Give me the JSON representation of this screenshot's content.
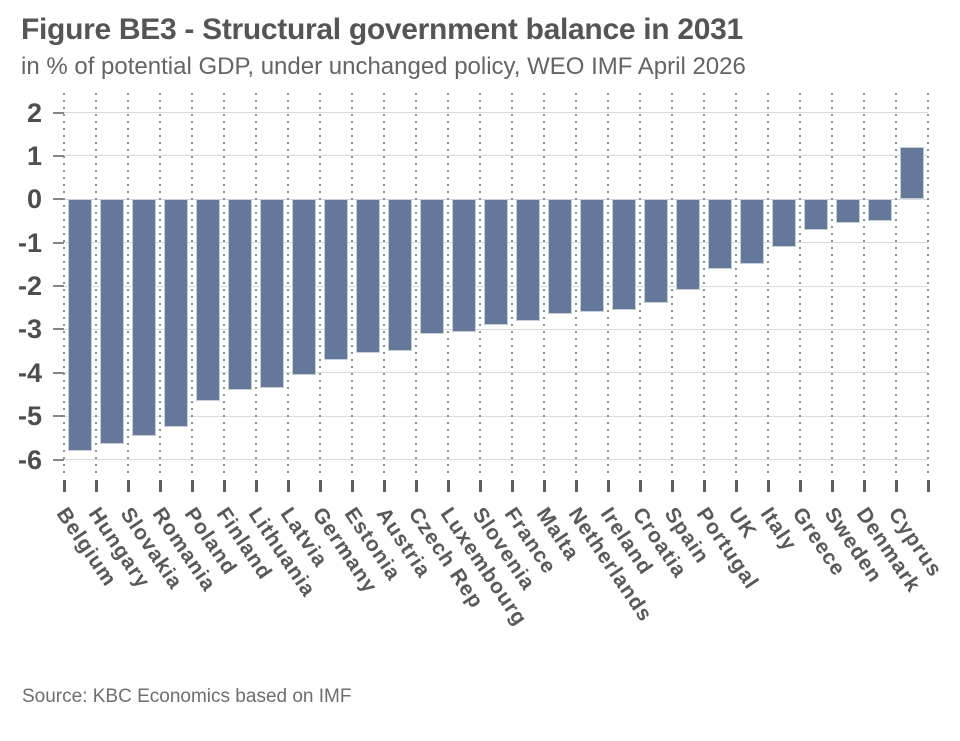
{
  "figure": {
    "title": "Figure BE3 - Structural government balance in 2031",
    "subtitle": "in % of potential GDP, under unchanged policy, WEO IMF April 2026",
    "source": "Source: KBC Economics based on IMF"
  },
  "colors": {
    "bar": "#64789b",
    "bar_border": "#c6cedb",
    "gridline": "#dadada",
    "dotted_separator": "#8f8f8f",
    "axis_tick": "#5f5f61",
    "title_text": "#555557",
    "subtitle_text": "#646464",
    "y_label_text": "#4e4e50",
    "x_label_text": "#58595b",
    "source_text": "#6e6e6e"
  },
  "chart_data": {
    "type": "bar",
    "title": "Figure BE3 - Structural government balance in 2031",
    "subtitle": "in % of potential GDP, under unchanged policy, WEO IMF April 2026",
    "source": "Source: KBC Economics based on IMF",
    "categories": [
      "Belgium",
      "Hungary",
      "Slovakia",
      "Romania",
      "Poland",
      "Finland",
      "Lithuania",
      "Latvia",
      "Germany",
      "Estonia",
      "Austria",
      "Czech Rep",
      "Luxembourg",
      "Slovenia",
      "France",
      "Malta",
      "Netherlands",
      "Ireland",
      "Croatia",
      "Spain",
      "Portugal",
      "UK",
      "Italy",
      "Greece",
      "Sweden",
      "Denmark",
      "Cyprus"
    ],
    "values": [
      -5.8,
      -5.65,
      -5.45,
      -5.25,
      -4.65,
      -4.4,
      -4.35,
      -4.05,
      -3.7,
      -3.55,
      -3.5,
      -3.1,
      -3.05,
      -2.9,
      -2.8,
      -2.65,
      -2.6,
      -2.55,
      -2.4,
      -2.1,
      -1.6,
      -1.5,
      -1.1,
      -0.7,
      -0.55,
      -0.5,
      1.2
    ],
    "xlabel": "",
    "ylabel": "",
    "y_ticks": [
      2,
      1,
      0,
      -1,
      -2,
      -3,
      -4,
      -5,
      -6
    ],
    "ylim": [
      -6.4,
      2.45
    ],
    "grid": "horizontal solid lines + vertical dotted category separators",
    "legend": "none",
    "bar_color": "#64789b",
    "x_label_rotation_deg": 56
  }
}
